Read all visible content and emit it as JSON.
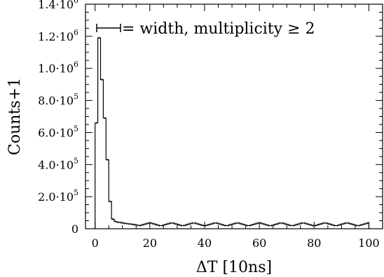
{
  "chart_data": {
    "type": "histogram",
    "xlabel": "ΔT [10ns]",
    "ylabel": "Counts+1",
    "xlim": [
      -3.5,
      105
    ],
    "ylim": [
      0,
      1400000
    ],
    "x_ticks": [
      0,
      20,
      40,
      60,
      80,
      100
    ],
    "x_tick_labels": [
      "0",
      "20",
      "40",
      "60",
      "80",
      "100"
    ],
    "y_ticks": [
      0,
      200000,
      400000,
      600000,
      800000,
      1000000,
      1200000,
      1400000
    ],
    "y_tick_labels": [
      {
        "mantissa": "0",
        "exponent": ""
      },
      {
        "mantissa": "2.0·10",
        "exponent": "5"
      },
      {
        "mantissa": "4.0·10",
        "exponent": "5"
      },
      {
        "mantissa": "6.0·10",
        "exponent": "5"
      },
      {
        "mantissa": "8.0·10",
        "exponent": "5"
      },
      {
        "mantissa": "1.0·10",
        "exponent": "6"
      },
      {
        "mantissa": "1.2·10",
        "exponent": "6"
      },
      {
        "mantissa": "1.4·10",
        "exponent": "6"
      }
    ],
    "bin_width": 1,
    "bin_start": 0,
    "values": [
      660000,
      1190000,
      930000,
      690000,
      430000,
      170000,
      60000,
      45000,
      40000,
      38000,
      35000,
      32000,
      30000,
      28000,
      25000,
      22000,
      20000,
      25000,
      30000,
      35000,
      35000,
      30000,
      25000,
      20000,
      20000,
      25000,
      30000,
      35000,
      35000,
      30000,
      25000,
      20000,
      20000,
      25000,
      30000,
      35000,
      35000,
      30000,
      25000,
      20000,
      20000,
      25000,
      30000,
      35000,
      35000,
      30000,
      25000,
      20000,
      20000,
      25000,
      30000,
      35000,
      35000,
      30000,
      25000,
      20000,
      20000,
      25000,
      30000,
      35000,
      35000,
      30000,
      25000,
      20000,
      20000,
      25000,
      30000,
      35000,
      35000,
      30000,
      25000,
      20000,
      20000,
      25000,
      30000,
      35000,
      35000,
      30000,
      25000,
      20000,
      20000,
      25000,
      30000,
      35000,
      35000,
      30000,
      25000,
      20000,
      20000,
      25000,
      30000,
      35000,
      35000,
      30000,
      25000,
      20000,
      20000,
      25000,
      30000,
      35000
    ],
    "legend": {
      "text": "= width, multiplicity ≥ 2",
      "position": "top-left"
    },
    "grid": false,
    "colors": {
      "line": "#000000",
      "background": "#ffffff"
    }
  }
}
